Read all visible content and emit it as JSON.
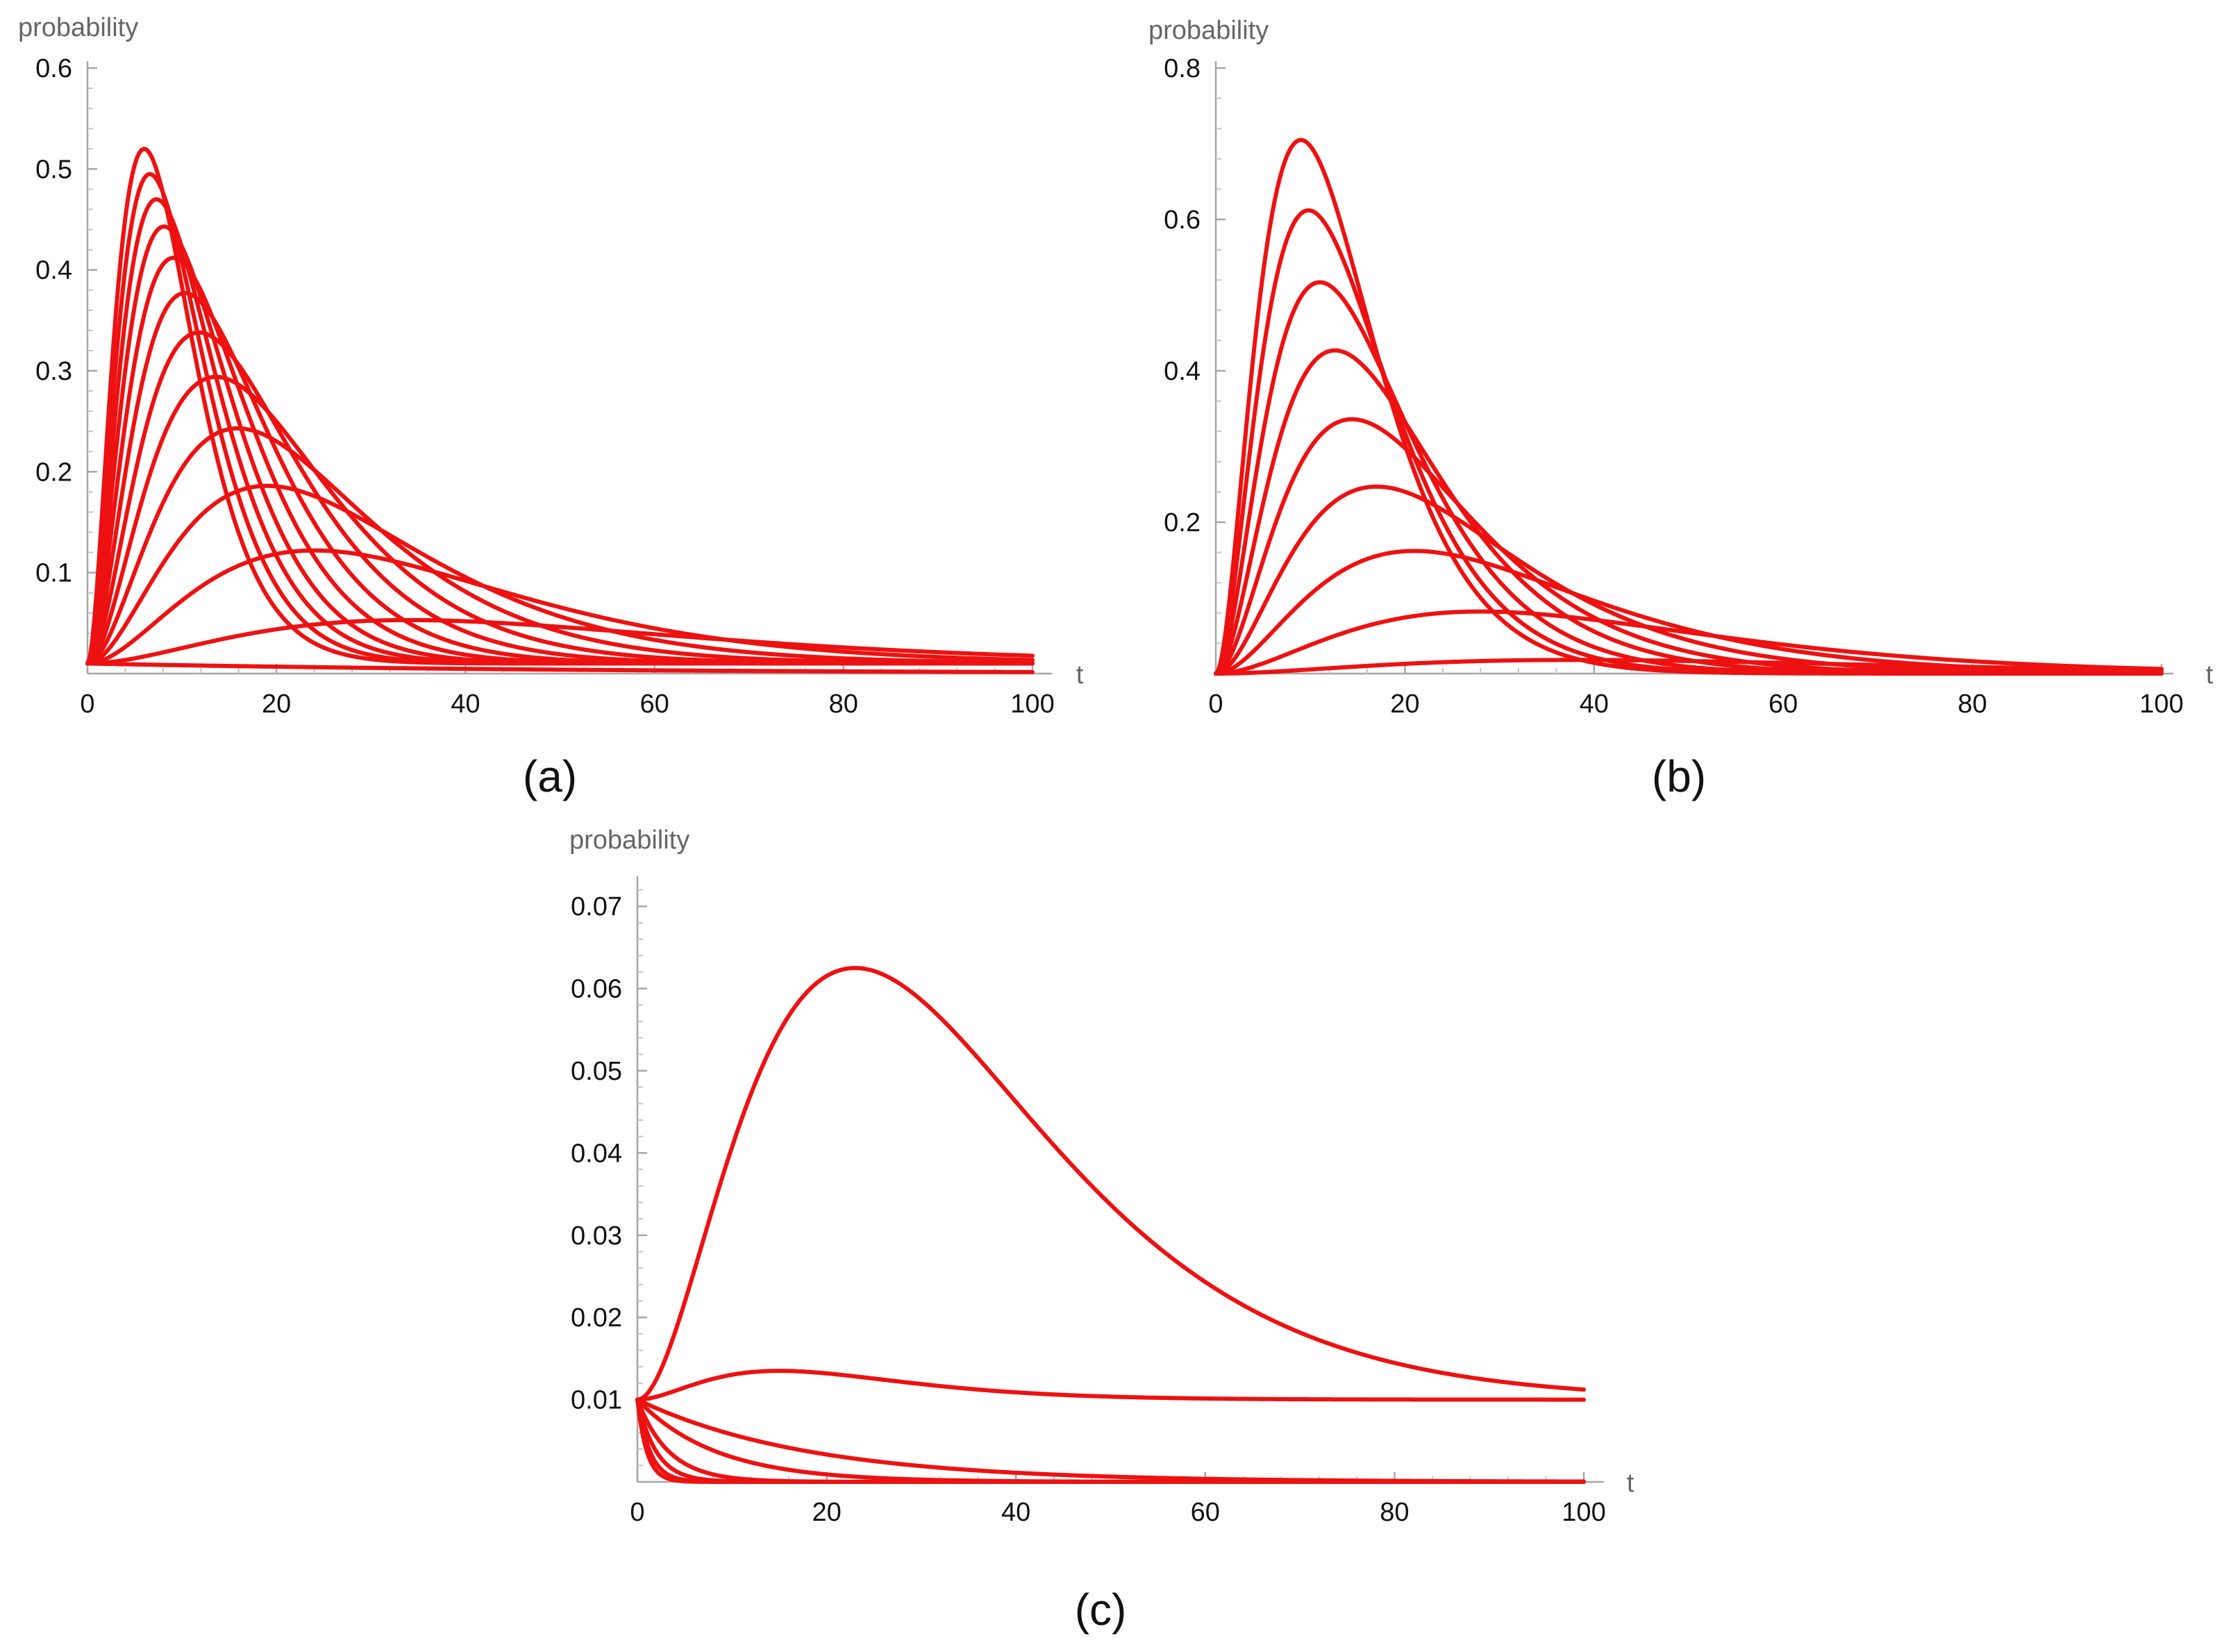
{
  "chart_data": [
    {
      "id": "a",
      "type": "line",
      "panel_label": "(a)",
      "xlabel": "t",
      "ylabel": "probability",
      "xlim": [
        0,
        100
      ],
      "ylim": [
        0,
        0.6
      ],
      "x_ticks": [
        0,
        20,
        40,
        60,
        80,
        100
      ],
      "x_tick_labels": [
        "0",
        "20",
        "40",
        "60",
        "80",
        "100"
      ],
      "y_ticks": [
        0.1,
        0.2,
        0.3,
        0.4,
        0.5,
        0.6
      ],
      "y_tick_labels": [
        "0.1",
        "0.2",
        "0.3",
        "0.4",
        "0.5",
        "0.6"
      ],
      "color": "#ee1111",
      "initial_value": 0.01,
      "x_end": 100,
      "series": [
        {
          "name": "curve-1",
          "peak_t": 6,
          "peak_value": 0.52
        },
        {
          "name": "curve-2",
          "peak_t": 6.6,
          "peak_value": 0.495
        },
        {
          "name": "curve-3",
          "peak_t": 7.3,
          "peak_value": 0.47
        },
        {
          "name": "curve-4",
          "peak_t": 8.1,
          "peak_value": 0.443
        },
        {
          "name": "curve-5",
          "peak_t": 9.1,
          "peak_value": 0.412
        },
        {
          "name": "curve-6",
          "peak_t": 10.3,
          "peak_value": 0.377
        },
        {
          "name": "curve-7",
          "peak_t": 11.8,
          "peak_value": 0.338
        },
        {
          "name": "curve-8",
          "peak_t": 13.6,
          "peak_value": 0.294
        },
        {
          "name": "curve-9",
          "peak_t": 15.9,
          "peak_value": 0.243
        },
        {
          "name": "curve-10",
          "peak_t": 19,
          "peak_value": 0.186
        },
        {
          "name": "curve-11",
          "peak_t": 24,
          "peak_value": 0.122
        },
        {
          "name": "curve-12",
          "peak_t": 34,
          "peak_value": 0.053
        },
        {
          "name": "curve-13",
          "peak_t": 1,
          "peak_value": 0.01,
          "end_value": 0.0015
        }
      ]
    },
    {
      "id": "b",
      "type": "line",
      "panel_label": "(b)",
      "xlabel": "t",
      "ylabel": "probability",
      "xlim": [
        0,
        100
      ],
      "ylim": [
        0,
        0.8
      ],
      "x_ticks": [
        0,
        20,
        40,
        60,
        80,
        100
      ],
      "x_tick_labels": [
        "0",
        "20",
        "40",
        "60",
        "80",
        "100"
      ],
      "y_ticks": [
        0.2,
        0.4,
        0.6,
        0.8
      ],
      "y_tick_labels": [
        "0.2",
        "0.4",
        "0.6",
        "0.8"
      ],
      "color": "#ee1111",
      "initial_value": 0.0,
      "x_end": 100,
      "series": [
        {
          "name": "curve-1",
          "peak_t": 9,
          "peak_value": 0.705
        },
        {
          "name": "curve-2",
          "peak_t": 9.8,
          "peak_value": 0.612
        },
        {
          "name": "curve-3",
          "peak_t": 11,
          "peak_value": 0.517
        },
        {
          "name": "curve-4",
          "peak_t": 12.6,
          "peak_value": 0.427
        },
        {
          "name": "curve-5",
          "peak_t": 14.4,
          "peak_value": 0.336
        },
        {
          "name": "curve-6",
          "peak_t": 17,
          "peak_value": 0.247
        },
        {
          "name": "curve-7",
          "peak_t": 21,
          "peak_value": 0.162
        },
        {
          "name": "curve-8",
          "peak_t": 28,
          "peak_value": 0.082
        },
        {
          "name": "curve-9",
          "peak_t": 38,
          "peak_value": 0.018
        }
      ]
    },
    {
      "id": "c",
      "type": "line",
      "panel_label": "(c)",
      "xlabel": "t",
      "ylabel": "probability",
      "xlim": [
        0,
        100
      ],
      "ylim": [
        0,
        0.075
      ],
      "x_ticks": [
        0,
        20,
        40,
        60,
        80,
        100
      ],
      "x_tick_labels": [
        "0",
        "20",
        "40",
        "60",
        "80",
        "100"
      ],
      "y_ticks": [
        0.01,
        0.02,
        0.03,
        0.04,
        0.05,
        0.06,
        0.07
      ],
      "y_tick_labels": [
        "0.01",
        "0.02",
        "0.03",
        "0.04",
        "0.05",
        "0.06",
        "0.07"
      ],
      "color": "#ee1111",
      "initial_value": 0.01,
      "x_end": 100,
      "series": [
        {
          "name": "curve-1",
          "peak_t": 23,
          "peak_value": 0.0625
        },
        {
          "name": "curve-2",
          "peak_t": 15,
          "peak_value": 0.0135
        },
        {
          "name": "curve-3",
          "decay_rate": 0.055
        },
        {
          "name": "curve-4",
          "decay_rate": 0.12
        },
        {
          "name": "curve-5",
          "decay_rate": 0.3
        },
        {
          "name": "curve-6",
          "decay_rate": 0.5
        },
        {
          "name": "curve-7",
          "decay_rate": 0.75
        },
        {
          "name": "curve-8",
          "decay_rate": 1.0
        }
      ]
    }
  ]
}
